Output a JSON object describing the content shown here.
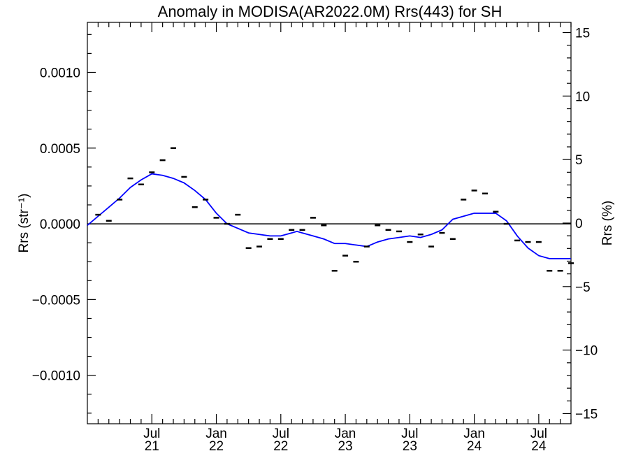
{
  "chart_data": {
    "type": "scatter",
    "title": "Anomaly in MODISA(AR2022.0M) Rrs(443) for SH",
    "ylabel_left": "Rrs (str⁻¹)",
    "ylabel_right": "Rrs (%)",
    "xlabel": "",
    "x_unit": "months since Jan 2021",
    "xlim": [
      0,
      45
    ],
    "ylim_left": [
      -0.00132,
      0.00133
    ],
    "ylim_right": [
      -15.8,
      15.8
    ],
    "x_ticks": [
      {
        "x": 6,
        "label_top": "Jul",
        "label_bottom": "21"
      },
      {
        "x": 12,
        "label_top": "Jan",
        "label_bottom": "22"
      },
      {
        "x": 18,
        "label_top": "Jul",
        "label_bottom": "22"
      },
      {
        "x": 24,
        "label_top": "Jan",
        "label_bottom": "23"
      },
      {
        "x": 30,
        "label_top": "Jul",
        "label_bottom": "23"
      },
      {
        "x": 36,
        "label_top": "Jan",
        "label_bottom": "24"
      },
      {
        "x": 42,
        "label_top": "Jul",
        "label_bottom": "24"
      }
    ],
    "y_ticks_left": [
      {
        "v": 0.001,
        "label": "0.0010"
      },
      {
        "v": 0.0005,
        "label": "0.0005"
      },
      {
        "v": 0.0,
        "label": "0.0000"
      },
      {
        "v": -0.0005,
        "label": "−0.0005"
      },
      {
        "v": -0.001,
        "label": "−0.0010"
      }
    ],
    "y_ticks_right": [
      {
        "v": 15,
        "label": "15"
      },
      {
        "v": 10,
        "label": "10"
      },
      {
        "v": 5,
        "label": "5"
      },
      {
        "v": 0,
        "label": "0"
      },
      {
        "v": -5,
        "label": "−5"
      },
      {
        "v": -10,
        "label": "−10"
      },
      {
        "v": -15,
        "label": "−15"
      }
    ],
    "zero_line": true,
    "series": [
      {
        "kind": "markers",
        "color": "#000000",
        "points": [
          [
            1,
            6e-05
          ],
          [
            2,
            2e-05
          ],
          [
            3,
            0.00016
          ],
          [
            4,
            0.0003
          ],
          [
            5,
            0.00026
          ],
          [
            6,
            0.00034
          ],
          [
            7,
            0.00042
          ],
          [
            8,
            0.0005
          ],
          [
            9,
            0.00031
          ],
          [
            10,
            0.00011
          ],
          [
            11,
            0.00016
          ],
          [
            12,
            4e-05
          ],
          [
            13,
            0.0
          ],
          [
            14,
            6e-05
          ],
          [
            15,
            -0.00016
          ],
          [
            16,
            -0.00015
          ],
          [
            17,
            -0.0001
          ],
          [
            18,
            -0.0001
          ],
          [
            19,
            -4e-05
          ],
          [
            20,
            -4e-05
          ],
          [
            21,
            4e-05
          ],
          [
            22,
            -1e-05
          ],
          [
            23,
            -0.00031
          ],
          [
            24,
            -0.00021
          ],
          [
            25,
            -0.00025
          ],
          [
            26,
            -0.00015
          ],
          [
            27,
            -1e-05
          ],
          [
            28,
            -4e-05
          ],
          [
            29,
            -5e-05
          ],
          [
            30,
            -0.00012
          ],
          [
            31,
            -7e-05
          ],
          [
            32,
            -0.00015
          ],
          [
            33,
            -6e-05
          ],
          [
            34,
            -0.0001
          ],
          [
            35,
            0.00016
          ],
          [
            36,
            0.00022
          ],
          [
            37,
            0.0002
          ],
          [
            38,
            8e-05
          ],
          [
            39,
            0.0
          ],
          [
            40,
            -0.00011
          ],
          [
            41,
            -0.00012
          ],
          [
            42,
            -0.00012
          ],
          [
            43,
            -0.00031
          ],
          [
            44,
            -0.00031
          ],
          [
            45,
            -0.00026
          ]
        ]
      },
      {
        "kind": "line",
        "color": "#0000ff",
        "points": [
          [
            0,
            -1e-05
          ],
          [
            1,
            5e-05
          ],
          [
            2,
            0.00011
          ],
          [
            3,
            0.00017
          ],
          [
            4,
            0.00024
          ],
          [
            5,
            0.00029
          ],
          [
            6,
            0.00033
          ],
          [
            7,
            0.00032
          ],
          [
            8,
            0.0003
          ],
          [
            9,
            0.00027
          ],
          [
            10,
            0.00022
          ],
          [
            11,
            0.00016
          ],
          [
            12,
            7e-05
          ],
          [
            13,
            0.0
          ],
          [
            14,
            -3e-05
          ],
          [
            15,
            -6e-05
          ],
          [
            16,
            -7e-05
          ],
          [
            17,
            -8e-05
          ],
          [
            18,
            -8e-05
          ],
          [
            19,
            -6e-05
          ],
          [
            19.5,
            -5e-05
          ],
          [
            20,
            -6e-05
          ],
          [
            21,
            -8e-05
          ],
          [
            22,
            -0.0001
          ],
          [
            23,
            -0.00013
          ],
          [
            24,
            -0.00013
          ],
          [
            25,
            -0.00014
          ],
          [
            26,
            -0.00015
          ],
          [
            27,
            -0.00012
          ],
          [
            28,
            -0.0001
          ],
          [
            29,
            -9e-05
          ],
          [
            30,
            -8e-05
          ],
          [
            31,
            -9e-05
          ],
          [
            32,
            -7e-05
          ],
          [
            33,
            -4e-05
          ],
          [
            34,
            3e-05
          ],
          [
            35,
            5e-05
          ],
          [
            36,
            7e-05
          ],
          [
            37,
            7e-05
          ],
          [
            38,
            7e-05
          ],
          [
            39,
            2e-05
          ],
          [
            40,
            -8e-05
          ],
          [
            41,
            -0.00016
          ],
          [
            42,
            -0.00021
          ],
          [
            43,
            -0.00023
          ],
          [
            44,
            -0.00023
          ],
          [
            45,
            -0.00023
          ]
        ]
      }
    ]
  }
}
